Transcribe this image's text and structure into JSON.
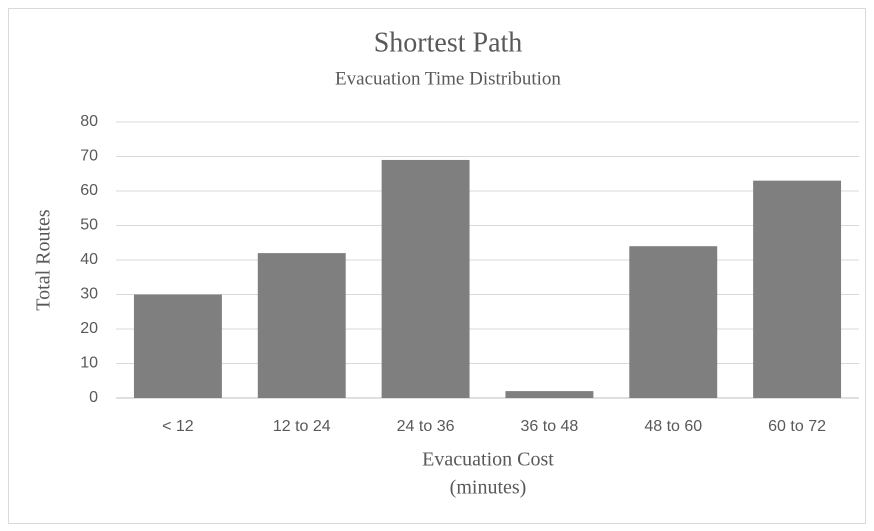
{
  "chart_data": {
    "type": "bar",
    "title": "Shortest Path",
    "subtitle": "Evacuation Time Distribution",
    "xlabel": [
      "Evacuation Cost",
      "(minutes)"
    ],
    "ylabel": "Total  Routes",
    "categories": [
      "< 12",
      "12 to 24",
      "24 to 36",
      "36 to 48",
      "48 to 60",
      "60 to 72"
    ],
    "values": [
      30,
      42,
      69,
      2,
      44,
      63
    ],
    "color": "#7f7f7f",
    "ylim": [
      0,
      80
    ],
    "yticks": [
      0,
      10,
      20,
      30,
      40,
      50,
      60,
      70,
      80
    ],
    "grid": true
  }
}
